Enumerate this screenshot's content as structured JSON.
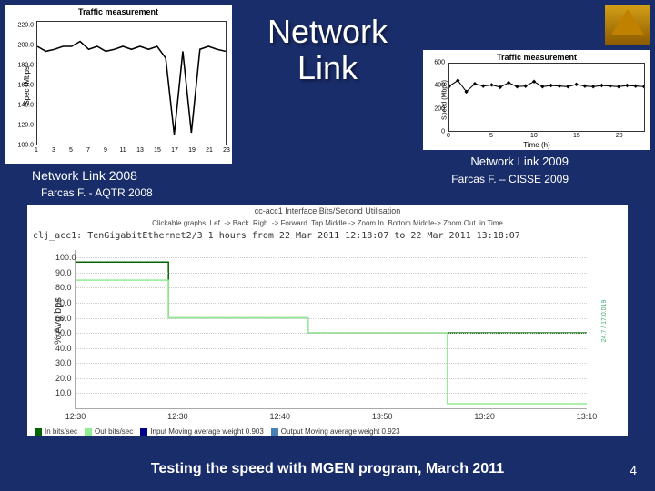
{
  "title": "Network\nLink",
  "chart_left": {
    "type": "line",
    "title": "Traffic measurement",
    "ylabel": "Spec (Mbps)",
    "xlabel": "",
    "x_ticks": [
      1,
      3,
      5,
      7,
      9,
      11,
      13,
      15,
      17,
      19,
      21,
      23
    ],
    "y_ticks": [
      100.0,
      120.0,
      140.0,
      160.0,
      180.0,
      200.0,
      220.0
    ],
    "ylim": [
      100,
      225
    ],
    "values": [
      200,
      195,
      197,
      200,
      200,
      205,
      197,
      200,
      195,
      197,
      200,
      197,
      200,
      197,
      200,
      188,
      110,
      195,
      112,
      197,
      200,
      197,
      195
    ],
    "line_color": "#000000",
    "background_color": "#ffffff"
  },
  "chart_right": {
    "type": "line",
    "title": "Traffic measurement",
    "ylabel": "Speed (Mbps)",
    "xlabel": "Time (h)",
    "x_ticks": [
      0,
      5,
      10,
      15,
      20
    ],
    "y_ticks": [
      0,
      200,
      400,
      600
    ],
    "ylim": [
      0,
      600
    ],
    "values": [
      400,
      450,
      350,
      420,
      400,
      410,
      390,
      430,
      395,
      400,
      440,
      395,
      405,
      400,
      395,
      415,
      400,
      395,
      405,
      400,
      395,
      405,
      400,
      395
    ],
    "line_color": "#000000",
    "marker": "diamond",
    "background_color": "#ffffff"
  },
  "label_left": "Network Link 2008",
  "source_left": "Farcas F. - AQTR 2008",
  "label_right": "Network Link 2009",
  "source_right": "Farcas F. – CISSE 2009",
  "main_chart": {
    "type": "line",
    "header_line1": "cc-acc1 Interface Bits/Second Utilisation",
    "header_line2": "Clickable graphs. Lef. -> Back. Righ. -> Forward. Top Middle -> Zoom In. Bottom Middle-> Zoom Out. in Time",
    "subtitle": "clj_acc1: TenGigabitEthernet2/3    1 hours from 22 Mar 2011 12:18:07 to 22 Mar 2011 13:18:07",
    "ylabel": "% Avg bps",
    "right_label": "24.7 / 17.0.019",
    "x_ticks": [
      "12:30",
      "12:30",
      "12:40",
      "13:50",
      "13:20",
      "13:10"
    ],
    "y_ticks": [
      10.0,
      20.0,
      30.0,
      40.0,
      50.0,
      60.0,
      70.0,
      80.0,
      90.0,
      100.0
    ],
    "ylim": [
      0,
      105
    ],
    "series": [
      {
        "name": "In bits/sec",
        "color": "#006400",
        "values_pct": [
          97,
          97,
          60,
          60,
          60,
          50,
          50,
          50,
          50,
          50,
          50,
          50
        ]
      },
      {
        "name": "Out bits/sec",
        "color": "#90ee90",
        "values_pct": [
          85,
          85,
          60,
          60,
          60,
          50,
          50,
          50,
          3,
          3,
          3,
          3
        ]
      },
      {
        "name": "Input Moving average weight 0.903",
        "color": "#00008b"
      },
      {
        "name": "Output Moving average weight 0.923",
        "color": "#4682b4"
      }
    ],
    "background_color": "#ffffff",
    "grid_color": "#cccccc"
  },
  "caption": "Testing the speed with MGEN program, March 2011",
  "page_num": "4"
}
